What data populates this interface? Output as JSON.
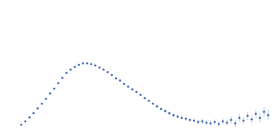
{
  "chart_data": {
    "type": "scatter",
    "color": "#3b66b5",
    "marker": "circle",
    "grid": true,
    "tick_labels": false,
    "xlim": [
      0,
      4
    ],
    "xticks": [
      1.15
    ],
    "ylim": [
      0,
      2
    ],
    "yticks": [
      1
    ],
    "x": [
      0.3,
      0.36,
      0.42,
      0.48,
      0.54,
      0.6,
      0.66,
      0.72,
      0.78,
      0.84,
      0.9,
      0.96,
      1.02,
      1.08,
      1.14,
      1.2,
      1.26,
      1.32,
      1.38,
      1.44,
      1.5,
      1.56,
      1.62,
      1.68,
      1.74,
      1.8,
      1.86,
      1.92,
      1.98,
      2.04,
      2.1,
      2.16,
      2.22,
      2.28,
      2.34,
      2.4,
      2.46,
      2.52,
      2.58,
      2.64,
      2.7,
      2.76,
      2.82,
      2.88,
      2.94,
      3.0,
      3.06,
      3.12,
      3.18,
      3.24,
      3.3,
      3.36,
      3.42,
      3.48,
      3.54,
      3.6,
      3.66,
      3.72,
      3.78,
      3.84,
      3.9,
      3.96
    ],
    "values": [
      0.17,
      0.22,
      0.28,
      0.34,
      0.41,
      0.48,
      0.55,
      0.63,
      0.7,
      0.78,
      0.86,
      0.93,
      0.98,
      1.02,
      1.05,
      1.07,
      1.07,
      1.06,
      1.04,
      1.01,
      0.98,
      0.94,
      0.9,
      0.85,
      0.82,
      0.77,
      0.73,
      0.69,
      0.65,
      0.61,
      0.56,
      0.52,
      0.48,
      0.44,
      0.4,
      0.37,
      0.34,
      0.31,
      0.29,
      0.27,
      0.26,
      0.24,
      0.23,
      0.21,
      0.22,
      0.2,
      0.19,
      0.21,
      0.18,
      0.22,
      0.2,
      0.24,
      0.19,
      0.27,
      0.23,
      0.3,
      0.25,
      0.33,
      0.27,
      0.36,
      0.31,
      0.38
    ],
    "errors": [
      0.005,
      0.005,
      0.005,
      0.005,
      0.005,
      0.005,
      0.005,
      0.005,
      0.005,
      0.005,
      0.005,
      0.005,
      0.005,
      0.005,
      0.005,
      0.005,
      0.005,
      0.005,
      0.005,
      0.005,
      0.005,
      0.01,
      0.01,
      0.01,
      0.01,
      0.01,
      0.01,
      0.01,
      0.01,
      0.015,
      0.015,
      0.015,
      0.015,
      0.02,
      0.02,
      0.02,
      0.02,
      0.025,
      0.025,
      0.025,
      0.03,
      0.03,
      0.03,
      0.03,
      0.035,
      0.035,
      0.04,
      0.04,
      0.04,
      0.045,
      0.045,
      0.05,
      0.05,
      0.055,
      0.055,
      0.06,
      0.06,
      0.065,
      0.07,
      0.07,
      0.075,
      0.08
    ]
  }
}
